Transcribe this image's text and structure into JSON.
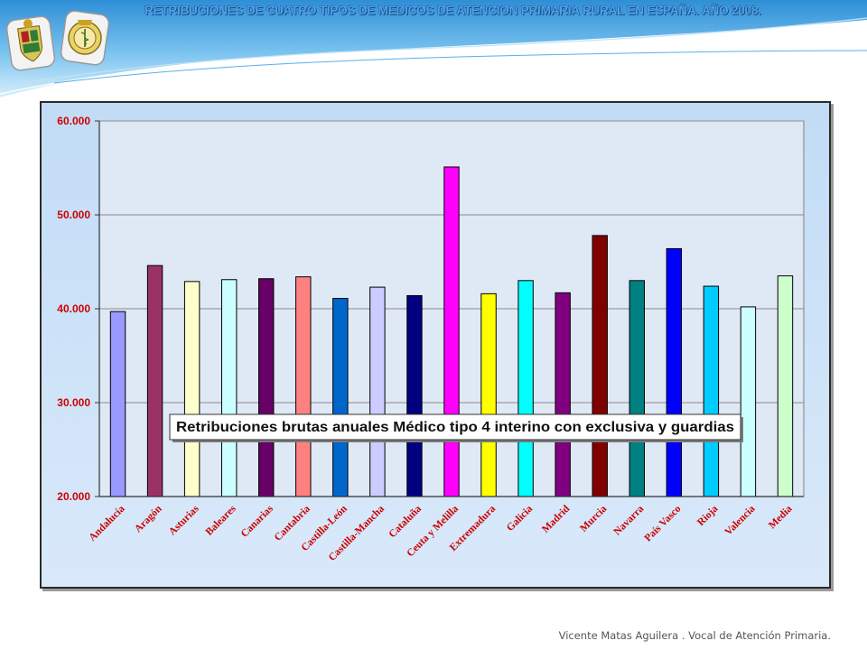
{
  "slide": {
    "title": "RETRIBUCIONES DE CUATRO TIPOS DE MEDICOS DE ATENCION PRIMARIA RURAL EN ESPAÑA. AÑO 2008.",
    "footer": "Vicente Matas Aguilera . Vocal de Atención Primaria."
  },
  "colors": {
    "title_fill": "#4fa3e8",
    "title_outline": "#1b4f8a",
    "axis_label": "#cc0000",
    "plot_bg": "#dfe8f5",
    "frame_bg": "#c8def5",
    "gridline": "#8c8c8c"
  },
  "icons": [
    "coat-of-arms-emblem",
    "medical-college-emblem"
  ],
  "chart_data": {
    "type": "bar",
    "annotation": "Retribuciones brutas anuales Médico tipo 4 interino con exclusiva y guardias",
    "ylim": [
      20000,
      60000
    ],
    "y_ticks": [
      20000,
      30000,
      40000,
      50000,
      60000
    ],
    "y_tick_labels": [
      "20.000",
      "30.000",
      "40.000",
      "50.000",
      "60.000"
    ],
    "grid": true,
    "categories": [
      "Andalucía",
      "Aragón",
      "Asturias",
      "Baleares",
      "Canarias",
      "Cantabria",
      "Castilla-León",
      "Castilla-Mancha",
      "Cataluña",
      "Ceuta y Melilla",
      "Extremadura",
      "Galicia",
      "Madrid",
      "Murcia",
      "Navarra",
      "País Vasco",
      "Rioja",
      "Valencia",
      "Media"
    ],
    "values": [
      39700,
      44600,
      42900,
      43100,
      43200,
      43400,
      41100,
      42300,
      41400,
      55100,
      41600,
      43000,
      41700,
      47800,
      43000,
      46400,
      42400,
      40200,
      43500
    ],
    "bar_colors": [
      "#9999ff",
      "#993366",
      "#ffffcc",
      "#ccffff",
      "#660066",
      "#ff8080",
      "#0066cc",
      "#ccccff",
      "#000080",
      "#ff00ff",
      "#ffff00",
      "#00ffff",
      "#800080",
      "#800000",
      "#008080",
      "#0000ff",
      "#00ccff",
      "#ccffff",
      "#ccffcc"
    ]
  }
}
